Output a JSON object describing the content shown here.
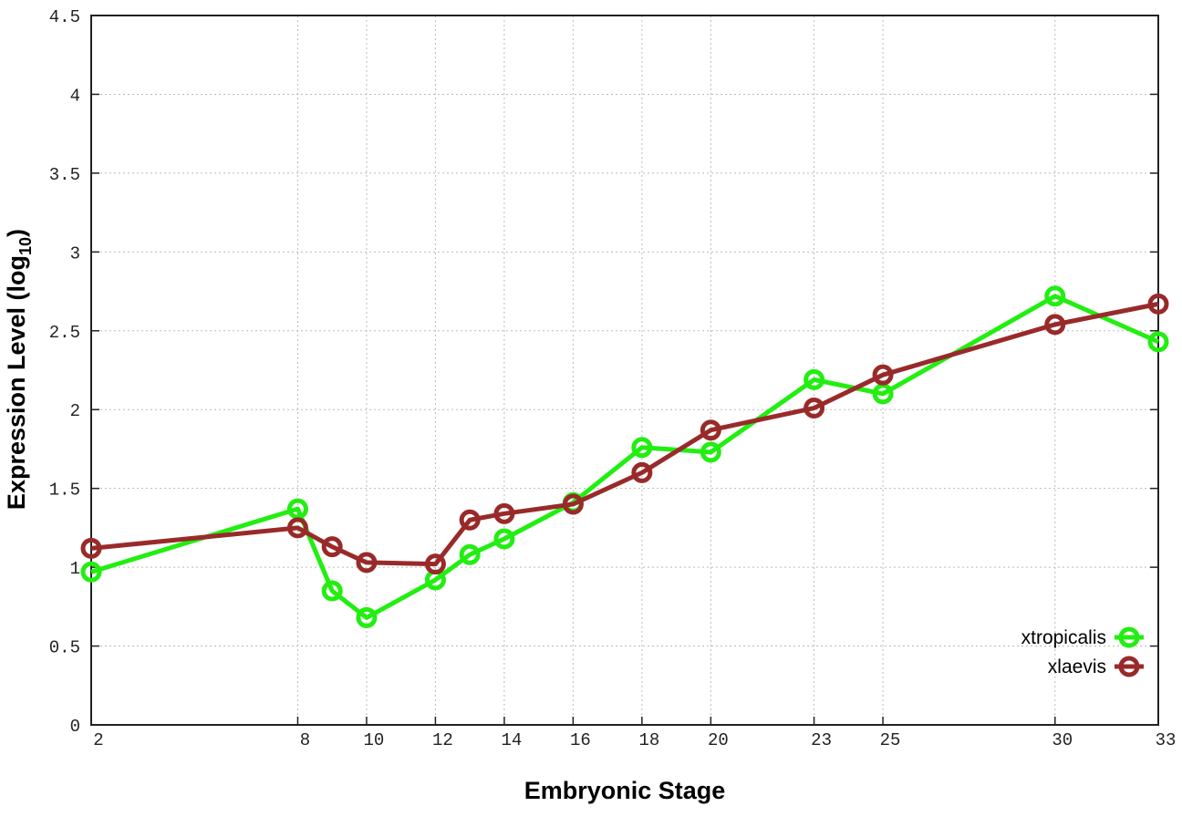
{
  "chart_data": {
    "type": "line",
    "xlabel": "Embryonic Stage",
    "ylabel": "Expression Level (log",
    "ylabel_sub": "10",
    "ylabel_close": ")",
    "xlim": [
      2,
      33
    ],
    "ylim": [
      0,
      4.5
    ],
    "x_ticks": [
      2,
      8,
      10,
      12,
      14,
      16,
      18,
      20,
      23,
      25,
      30,
      33
    ],
    "y_ticks": [
      "0",
      "0.5",
      "1",
      "1.5",
      "2",
      "2.5",
      "3",
      "3.5",
      "4",
      "4.5"
    ],
    "grid": true,
    "legend_placement": "bottom-right",
    "x": [
      2,
      8,
      9,
      10,
      12,
      13,
      14,
      16,
      18,
      20,
      23,
      25,
      30,
      33
    ],
    "series": [
      {
        "name": "xtropicalis",
        "color": "#22ee11",
        "values": [
          0.97,
          1.37,
          0.85,
          0.68,
          0.92,
          1.08,
          1.18,
          1.41,
          1.76,
          1.73,
          2.19,
          2.1,
          2.72,
          2.43
        ]
      },
      {
        "name": "xlaevis",
        "color": "#992a2a",
        "values": [
          1.12,
          1.25,
          1.13,
          1.03,
          1.02,
          1.3,
          1.34,
          1.4,
          1.6,
          1.87,
          2.01,
          2.22,
          2.54,
          2.67
        ]
      }
    ]
  }
}
